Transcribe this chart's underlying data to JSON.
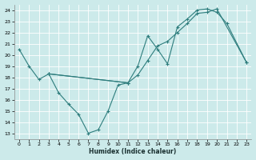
{
  "xlabel": "Humidex (Indice chaleur)",
  "background_color": "#cceaea",
  "line_color": "#2e7d7d",
  "xlim": [
    -0.5,
    23.5
  ],
  "ylim": [
    12.5,
    24.5
  ],
  "xticks": [
    0,
    1,
    2,
    3,
    4,
    5,
    6,
    7,
    8,
    9,
    10,
    11,
    12,
    13,
    14,
    15,
    16,
    17,
    18,
    19,
    20,
    21,
    22,
    23
  ],
  "yticks": [
    13,
    14,
    15,
    16,
    17,
    18,
    19,
    20,
    21,
    22,
    23,
    24
  ],
  "line1_x": [
    0,
    1,
    2,
    3,
    4,
    5,
    6,
    7,
    8,
    9,
    10,
    11
  ],
  "line1_y": [
    20.5,
    19.0,
    17.8,
    18.3,
    16.6,
    15.6,
    14.7,
    13.0,
    13.3,
    15.0,
    17.3,
    17.5
  ],
  "line2_x": [
    3,
    11,
    12,
    13,
    14,
    15,
    16,
    17,
    18,
    19,
    20,
    21,
    23
  ],
  "line2_y": [
    18.3,
    17.5,
    19.0,
    21.7,
    20.5,
    19.2,
    22.5,
    23.2,
    24.0,
    24.1,
    23.8,
    22.8,
    19.3
  ],
  "line3_x": [
    3,
    11,
    12,
    13,
    14,
    15,
    16,
    17,
    18,
    19,
    20,
    23
  ],
  "line3_y": [
    18.3,
    17.5,
    18.2,
    19.5,
    20.8,
    21.2,
    22.0,
    22.8,
    23.7,
    23.8,
    24.1,
    19.3
  ]
}
